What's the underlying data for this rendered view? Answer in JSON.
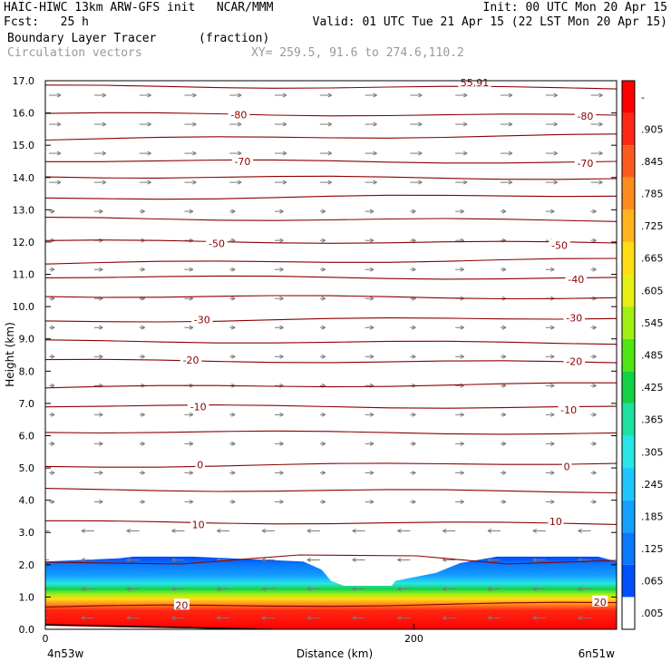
{
  "header": {
    "model_line": "HAIC-HIWC 13km ARW-GFS init",
    "org": "NCAR/MMM",
    "init": "Init: 00 UTC Mon 20 Apr 15",
    "fcst_label": "Fcst:",
    "fcst_value": "25 h",
    "valid": "Valid: 01 UTC Tue 21 Apr 15 (22 LST Mon 20 Apr 15)",
    "field_name": "Boundary Layer Tracer",
    "field_units": "(fraction)",
    "overlay_name": "Circulation vectors",
    "xy_text": "XY= 259.5, 91.6 to 274.6,110.2"
  },
  "chart_data": {
    "type": "heatmap",
    "ylabel": "Height (km)",
    "xlabel": "Distance (km)",
    "x_left_label": "4n53w",
    "x_right_label": "6n51w",
    "ylim": [
      0,
      17
    ],
    "xlim": [
      0,
      310
    ],
    "y_ticks": [
      "0.0",
      "1.0",
      "2.0",
      "3.0",
      "4.0",
      "5.0",
      "6.0",
      "7.0",
      "8.0",
      "9.0",
      "10.0",
      "11.0",
      "12.0",
      "13.0",
      "14.0",
      "15.0",
      "16.0",
      "17.0"
    ],
    "x_ticks": [
      "0",
      "200"
    ],
    "x_tick_values": [
      0,
      200
    ],
    "colorbar": {
      "labels": [
        ".005",
        ".065",
        ".125",
        ".185",
        ".245",
        ".305",
        ".365",
        ".425",
        ".485",
        ".545",
        ".605",
        ".665",
        ".725",
        ".785",
        ".845",
        ".905",
        "-"
      ],
      "colors": [
        "#ffffff",
        "#0050ff",
        "#0a78ff",
        "#14a0ff",
        "#1ec8ff",
        "#28e6e6",
        "#1ee1a0",
        "#14d246",
        "#50e614",
        "#a0f014",
        "#e6f014",
        "#ffdc14",
        "#ffb41e",
        "#ff8c1e",
        "#ff5a1e",
        "#ff2814",
        "#ff0000"
      ]
    },
    "contour_labels": [
      {
        "value": "-80",
        "x": 105,
        "y": 15.95
      },
      {
        "value": "-80",
        "x": 293,
        "y": 15.9
      },
      {
        "value": "-70",
        "x": 107,
        "y": 14.5
      },
      {
        "value": "-70",
        "x": 293,
        "y": 14.45
      },
      {
        "value": "-50",
        "x": 93,
        "y": 11.95
      },
      {
        "value": "-50",
        "x": 279,
        "y": 11.9
      },
      {
        "value": "-40",
        "x": 288,
        "y": 10.85
      },
      {
        "value": "-30",
        "x": 85,
        "y": 9.6
      },
      {
        "value": "-30",
        "x": 287,
        "y": 9.65
      },
      {
        "value": "-20",
        "x": 79,
        "y": 8.35
      },
      {
        "value": "-20",
        "x": 287,
        "y": 8.3
      },
      {
        "value": "-10",
        "x": 83,
        "y": 6.9
      },
      {
        "value": "-10",
        "x": 284,
        "y": 6.8
      },
      {
        "value": "0",
        "x": 84,
        "y": 5.1
      },
      {
        "value": "0",
        "x": 283,
        "y": 5.05
      },
      {
        "value": "10",
        "x": 83,
        "y": 3.25
      },
      {
        "value": "10",
        "x": 277,
        "y": 3.35
      },
      {
        "value": "20",
        "x": 74,
        "y": 0.75
      },
      {
        "value": "20",
        "x": 301,
        "y": 0.85
      },
      {
        "value": "55.91",
        "x": 233,
        "y": 16.95
      }
    ],
    "tracer_top_km": [
      [
        0,
        2.1
      ],
      [
        40,
        2.2
      ],
      [
        48,
        2.25
      ],
      [
        80,
        2.25
      ],
      [
        140,
        2.1
      ],
      [
        150,
        1.85
      ],
      [
        155,
        1.5
      ],
      [
        162,
        1.35
      ],
      [
        188,
        1.35
      ],
      [
        190,
        1.5
      ],
      [
        212,
        1.75
      ],
      [
        225,
        2.05
      ],
      [
        245,
        2.25
      ],
      [
        300,
        2.25
      ],
      [
        310,
        2.1
      ]
    ]
  }
}
